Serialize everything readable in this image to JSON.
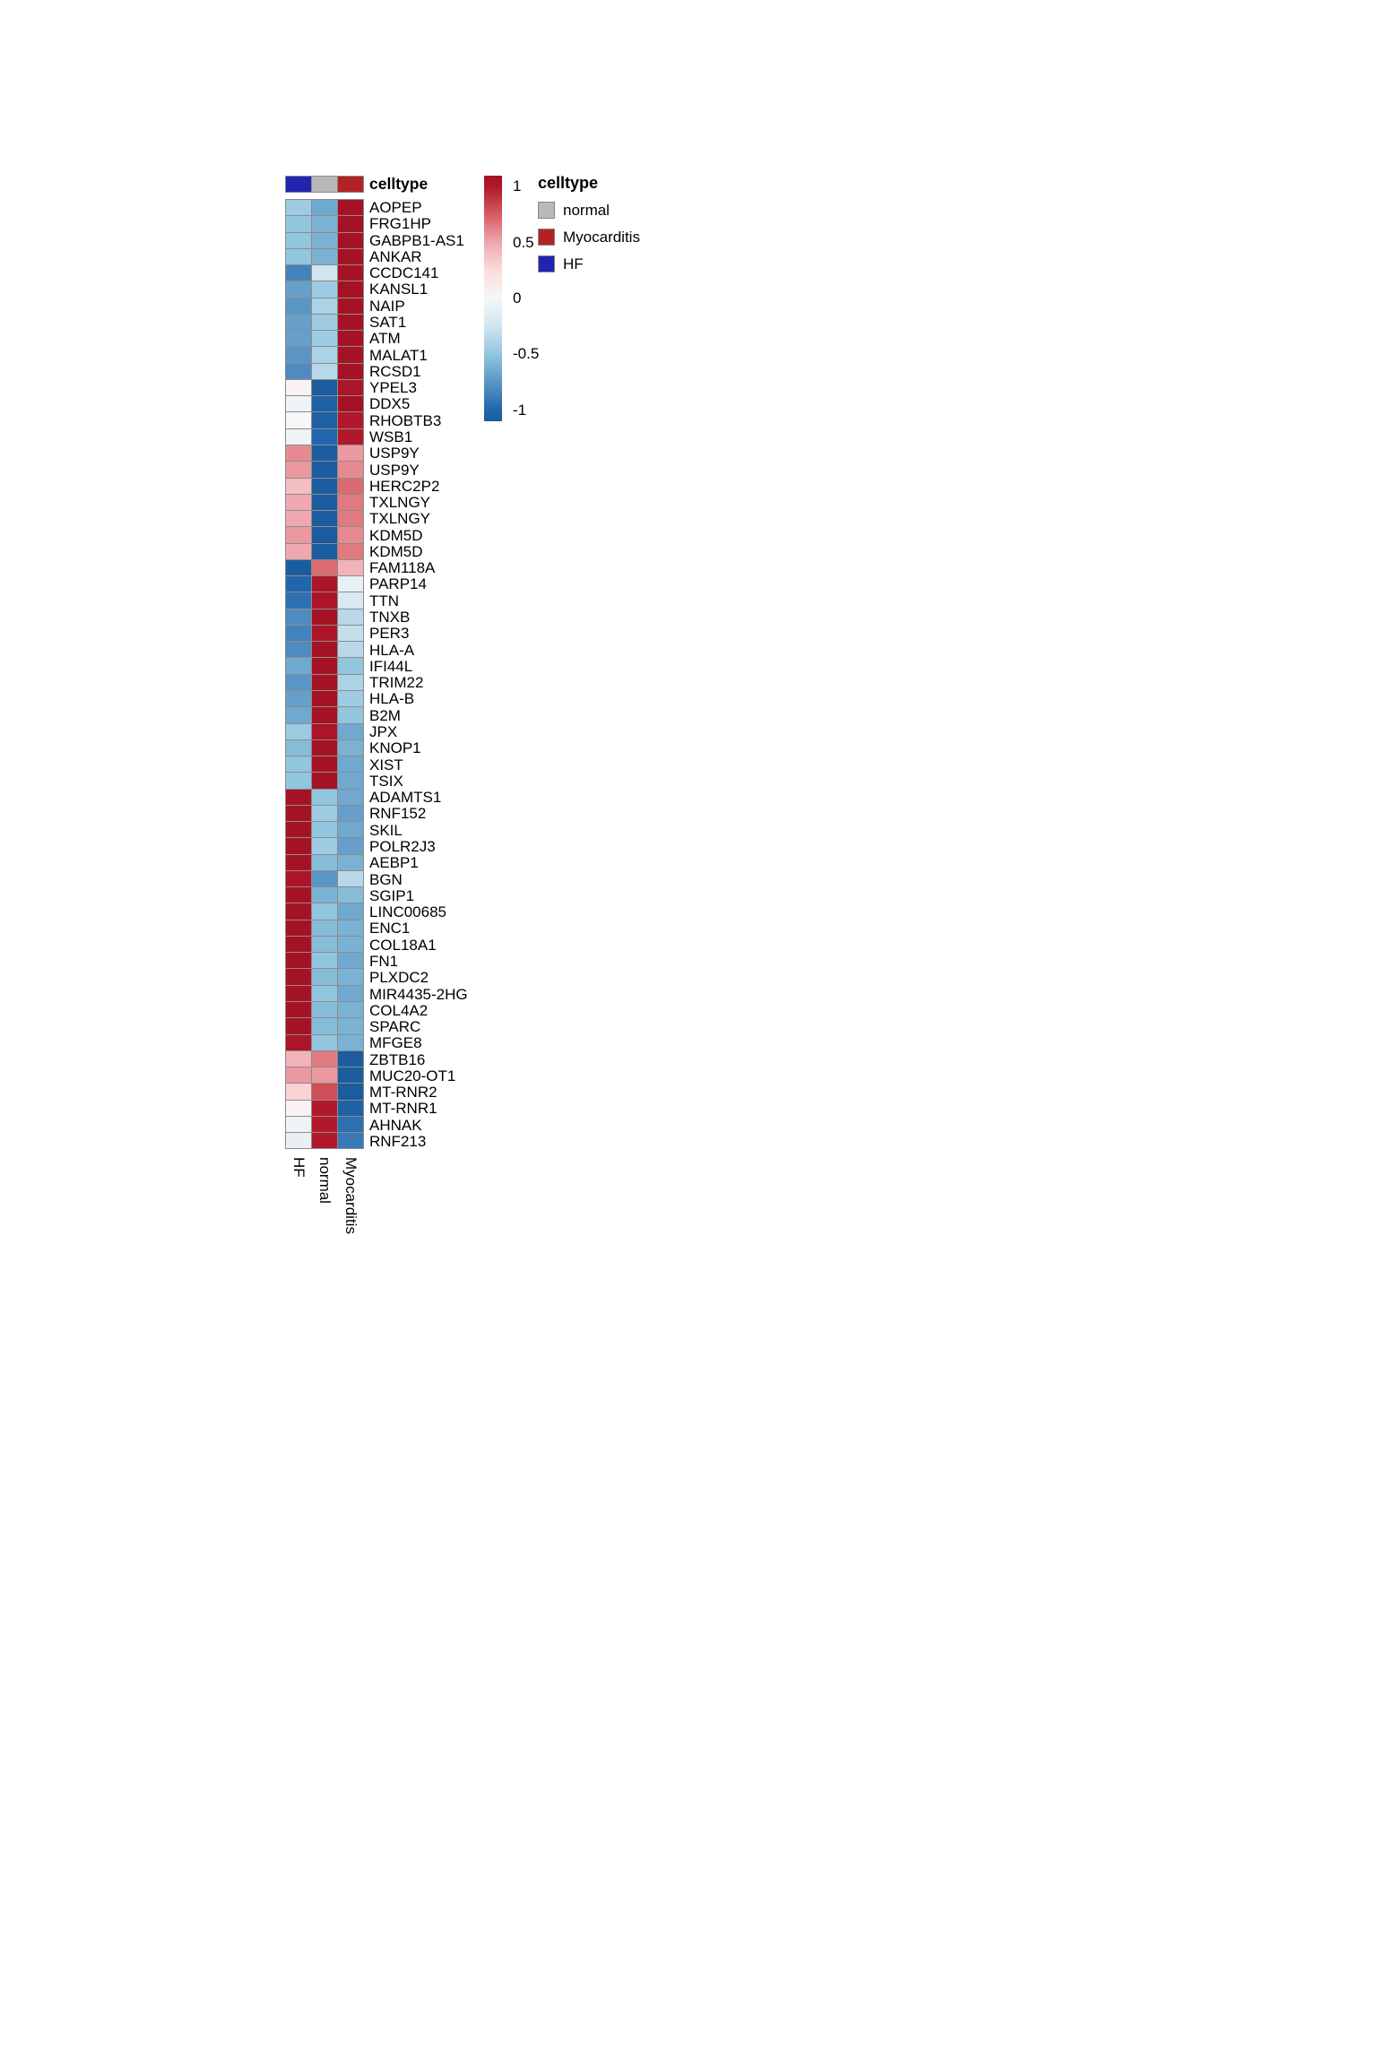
{
  "chart_data": {
    "type": "heatmap",
    "columns": [
      "HF",
      "normal",
      "Myocarditis"
    ],
    "rows": [
      "AOPEP",
      "FRG1HP",
      "GABPB1-AS1",
      "ANKAR",
      "CCDC141",
      "KANSL1",
      "NAIP",
      "SAT1",
      "ATM",
      "MALAT1",
      "RCSD1",
      "YPEL3",
      "DDX5",
      "RHOBTB3",
      "WSB1",
      "USP9Y",
      "USP9Y",
      "HERC2P2",
      "TXLNGY",
      "TXLNGY",
      "KDM5D",
      "KDM5D",
      "FAM118A",
      "PARP14",
      "TTN",
      "TNXB",
      "PER3",
      "HLA-A",
      "IFI44L",
      "TRIM22",
      "HLA-B",
      "B2M",
      "JPX",
      "KNOP1",
      "XIST",
      "TSIX",
      "ADAMTS1",
      "RNF152",
      "SKIL",
      "POLR2J3",
      "AEBP1",
      "BGN",
      "SGIP1",
      "LINC00685",
      "ENC1",
      "COL18A1",
      "FN1",
      "PLXDC2",
      "MIR4435-2HG",
      "COL4A2",
      "SPARC",
      "MFGE8",
      "ZBTB16",
      "MUC20-OT1",
      "MT-RNR2",
      "MT-RNR1",
      "AHNAK",
      "RNF213"
    ],
    "values": [
      [
        -0.45,
        -0.65,
        1.1
      ],
      [
        -0.5,
        -0.6,
        1.1
      ],
      [
        -0.5,
        -0.6,
        1.1
      ],
      [
        -0.5,
        -0.6,
        1.1
      ],
      [
        -0.85,
        -0.25,
        1.1
      ],
      [
        -0.7,
        -0.45,
        1.1
      ],
      [
        -0.75,
        -0.4,
        1.1
      ],
      [
        -0.7,
        -0.45,
        1.1
      ],
      [
        -0.7,
        -0.45,
        1.1
      ],
      [
        -0.75,
        -0.4,
        1.1
      ],
      [
        -0.8,
        -0.35,
        1.1
      ],
      [
        0.05,
        -1.1,
        1.05
      ],
      [
        -0.05,
        -1.05,
        1.1
      ],
      [
        0.0,
        -1.05,
        1.0
      ],
      [
        -0.05,
        -1.0,
        1.0
      ],
      [
        0.6,
        -1.1,
        0.55
      ],
      [
        0.55,
        -1.1,
        0.6
      ],
      [
        0.4,
        -1.1,
        0.7
      ],
      [
        0.5,
        -1.1,
        0.65
      ],
      [
        0.5,
        -1.1,
        0.65
      ],
      [
        0.55,
        -1.1,
        0.6
      ],
      [
        0.5,
        -1.1,
        0.65
      ],
      [
        -1.1,
        0.7,
        0.45
      ],
      [
        -1.0,
        1.05,
        -0.1
      ],
      [
        -0.95,
        1.05,
        -0.2
      ],
      [
        -0.8,
        1.1,
        -0.35
      ],
      [
        -0.85,
        1.05,
        -0.3
      ],
      [
        -0.8,
        1.1,
        -0.35
      ],
      [
        -0.65,
        1.1,
        -0.5
      ],
      [
        -0.75,
        1.1,
        -0.4
      ],
      [
        -0.7,
        1.1,
        -0.45
      ],
      [
        -0.65,
        1.1,
        -0.5
      ],
      [
        -0.45,
        1.05,
        -0.65
      ],
      [
        -0.55,
        1.1,
        -0.6
      ],
      [
        -0.5,
        1.1,
        -0.65
      ],
      [
        -0.5,
        1.1,
        -0.65
      ],
      [
        1.1,
        -0.5,
        -0.65
      ],
      [
        1.1,
        -0.45,
        -0.7
      ],
      [
        1.1,
        -0.5,
        -0.65
      ],
      [
        1.1,
        -0.45,
        -0.7
      ],
      [
        1.1,
        -0.55,
        -0.6
      ],
      [
        1.05,
        -0.75,
        -0.35
      ],
      [
        1.1,
        -0.6,
        -0.55
      ],
      [
        1.1,
        -0.5,
        -0.65
      ],
      [
        1.1,
        -0.55,
        -0.6
      ],
      [
        1.1,
        -0.55,
        -0.6
      ],
      [
        1.1,
        -0.5,
        -0.65
      ],
      [
        1.1,
        -0.55,
        -0.6
      ],
      [
        1.1,
        -0.5,
        -0.65
      ],
      [
        1.1,
        -0.55,
        -0.6
      ],
      [
        1.1,
        -0.55,
        -0.6
      ],
      [
        1.05,
        -0.5,
        -0.6
      ],
      [
        0.45,
        0.65,
        -1.1
      ],
      [
        0.55,
        0.55,
        -1.1
      ],
      [
        0.3,
        0.8,
        -1.1
      ],
      [
        0.05,
        1.0,
        -1.05
      ],
      [
        -0.05,
        1.0,
        -0.95
      ],
      [
        -0.1,
        1.0,
        -0.9
      ]
    ],
    "value_domain": [
      -1.1,
      1.1
    ],
    "annotation": {
      "title": "celltype",
      "values": [
        "HF",
        "normal",
        "Myocarditis"
      ]
    },
    "annotation_colors": {
      "HF": "#2323B2",
      "normal": "#B9B9B9",
      "Myocarditis": "#B22222"
    },
    "colormap": {
      "anchors": [
        [
          -1.1,
          "#1B5C9E"
        ],
        [
          -1.0,
          "#2166AC"
        ],
        [
          -0.5,
          "#92C5DE"
        ],
        [
          -0.25,
          "#D1E5F0"
        ],
        [
          0.0,
          "#F7F7F7"
        ],
        [
          0.25,
          "#FBDCDC"
        ],
        [
          0.5,
          "#EFA8B0"
        ],
        [
          0.75,
          "#D65C62"
        ],
        [
          1.0,
          "#B2182B"
        ],
        [
          1.1,
          "#A51226"
        ]
      ]
    },
    "colorbar": {
      "tick_labels": [
        "1",
        "0.5",
        "0",
        "-0.5",
        "-1"
      ],
      "tick_values": [
        1,
        0.5,
        0,
        -0.5,
        -1
      ]
    },
    "legend": {
      "title": "celltype",
      "items": [
        {
          "label": "normal",
          "color": "#B9B9B9"
        },
        {
          "label": "Myocarditis",
          "color": "#B22222"
        },
        {
          "label": "HF",
          "color": "#2323B2"
        }
      ]
    }
  }
}
